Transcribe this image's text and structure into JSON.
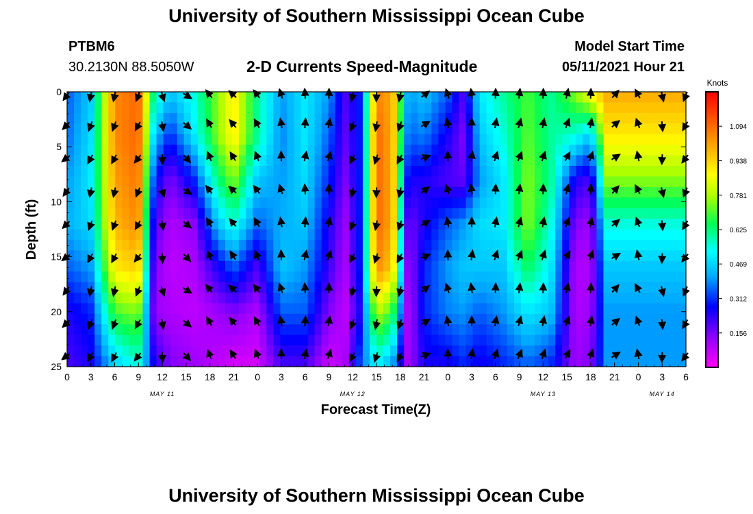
{
  "header": {
    "title": "University of Southern Mississippi Ocean Cube",
    "station_id": "PTBM6",
    "coordinates": "30.2130N  88.5050W",
    "subtitle": "2-D Currents Speed-Magnitude",
    "model_start_label": "Model Start Time",
    "model_start_value": "05/11/2021 Hour 21"
  },
  "footer": {
    "title": "University of Southern Mississippi Ocean Cube"
  },
  "chart_data": {
    "type": "heatmap",
    "title": "2-D Currents Speed-Magnitude",
    "xlabel": "Forecast Time(Z)",
    "ylabel": "Depth (ft)",
    "xlim_hours": [
      0,
      78
    ],
    "ylim": [
      0,
      25
    ],
    "x_tick_labels": [
      "0",
      "3",
      "6",
      "9",
      "12",
      "15",
      "18",
      "21",
      "0",
      "3",
      "6",
      "9",
      "12",
      "15",
      "18",
      "21",
      "0",
      "3",
      "6",
      "9",
      "12",
      "15",
      "18",
      "21",
      "0",
      "3",
      "6"
    ],
    "y_ticks": [
      0,
      5,
      10,
      15,
      20,
      25
    ],
    "date_labels": [
      {
        "text": "MAY 11",
        "hour": 12
      },
      {
        "text": "MAY 12",
        "hour": 36
      },
      {
        "text": "MAY 13",
        "hour": 60
      },
      {
        "text": "MAY 14",
        "hour": 75
      }
    ],
    "colorbar": {
      "title": "Knots",
      "min": 0.0,
      "max": 1.25,
      "ticks": [
        1.094,
        0.938,
        0.781,
        0.625,
        0.469,
        0.312,
        0.156
      ]
    },
    "speed_columns": [
      {
        "hour": 0,
        "speeds": [
          0.35,
          0.36,
          0.4,
          0.42,
          0.35,
          0.25,
          0.2
        ]
      },
      {
        "hour": 3,
        "speeds": [
          0.45,
          0.48,
          0.5,
          0.48,
          0.4,
          0.3,
          0.25
        ]
      },
      {
        "hour": 6,
        "speeds": [
          1.05,
          1.05,
          1.02,
          0.98,
          0.9,
          0.7,
          0.45
        ]
      },
      {
        "hour": 9,
        "speeds": [
          1.1,
          1.1,
          1.08,
          1.05,
          0.95,
          0.75,
          0.55
        ]
      },
      {
        "hour": 11,
        "speeds": [
          0.6,
          0.45,
          0.3,
          0.2,
          0.15,
          0.12,
          0.25
        ]
      },
      {
        "hour": 13,
        "speeds": [
          0.45,
          0.3,
          0.15,
          0.1,
          0.08,
          0.1,
          0.15
        ]
      },
      {
        "hour": 16,
        "speeds": [
          0.55,
          0.5,
          0.3,
          0.14,
          0.1,
          0.08,
          0.12
        ]
      },
      {
        "hour": 19,
        "speeds": [
          0.75,
          0.75,
          0.62,
          0.45,
          0.25,
          0.12,
          0.08
        ]
      },
      {
        "hour": 21,
        "speeds": [
          0.9,
          0.9,
          0.75,
          0.55,
          0.35,
          0.15,
          0.05
        ]
      },
      {
        "hour": 24,
        "speeds": [
          0.6,
          0.6,
          0.45,
          0.35,
          0.2,
          0.1,
          0.05
        ]
      },
      {
        "hour": 27,
        "speeds": [
          0.4,
          0.38,
          0.4,
          0.42,
          0.45,
          0.35,
          0.2
        ]
      },
      {
        "hour": 30,
        "speeds": [
          0.5,
          0.5,
          0.48,
          0.45,
          0.4,
          0.35,
          0.2
        ]
      },
      {
        "hour": 33,
        "speeds": [
          0.4,
          0.35,
          0.3,
          0.25,
          0.22,
          0.15,
          0.06
        ]
      },
      {
        "hour": 35,
        "speeds": [
          0.2,
          0.18,
          0.15,
          0.12,
          0.1,
          0.08,
          0.1
        ]
      },
      {
        "hour": 37,
        "speeds": [
          0.3,
          0.3,
          0.3,
          0.3,
          0.3,
          0.25,
          0.35
        ]
      },
      {
        "hour": 39,
        "speeds": [
          1.05,
          1.1,
          1.1,
          1.1,
          1.05,
          0.8,
          0.5
        ]
      },
      {
        "hour": 41,
        "speeds": [
          1.0,
          1.0,
          1.0,
          1.0,
          0.95,
          0.7,
          0.4
        ]
      },
      {
        "hour": 43,
        "speeds": [
          0.4,
          0.35,
          0.25,
          0.15,
          0.1,
          0.08,
          0.1
        ]
      },
      {
        "hour": 45,
        "speeds": [
          0.45,
          0.38,
          0.25,
          0.25,
          0.3,
          0.3,
          0.25
        ]
      },
      {
        "hour": 48,
        "speeds": [
          0.35,
          0.25,
          0.2,
          0.35,
          0.4,
          0.38,
          0.25
        ]
      },
      {
        "hour": 50,
        "speeds": [
          0.2,
          0.15,
          0.18,
          0.4,
          0.45,
          0.4,
          0.3
        ]
      },
      {
        "hour": 52,
        "speeds": [
          0.5,
          0.45,
          0.4,
          0.48,
          0.45,
          0.35,
          0.25
        ]
      },
      {
        "hour": 55,
        "speeds": [
          0.6,
          0.55,
          0.5,
          0.5,
          0.45,
          0.4,
          0.3
        ]
      },
      {
        "hour": 58,
        "speeds": [
          0.7,
          0.72,
          0.75,
          0.75,
          0.65,
          0.5,
          0.35
        ]
      },
      {
        "hour": 61,
        "speeds": [
          0.6,
          0.6,
          0.6,
          0.55,
          0.5,
          0.45,
          0.3
        ]
      },
      {
        "hour": 64,
        "speeds": [
          0.75,
          0.55,
          0.25,
          0.15,
          0.1,
          0.1,
          0.12
        ]
      },
      {
        "hour": 66,
        "speeds": [
          0.9,
          0.45,
          0.2,
          0.12,
          0.1,
          0.12,
          0.15
        ]
      },
      {
        "hour": 68,
        "speeds": [
          1.0,
          0.9,
          0.75,
          0.55,
          0.45,
          0.4,
          0.4
        ]
      }
    ],
    "vector_arrows": {
      "note": "depth-averaged directions (degrees, 0 = up/north, clockwise) per 3-hour column",
      "hours": [
        0,
        3,
        6,
        9,
        12,
        15,
        18,
        21,
        24,
        27,
        30,
        33,
        36,
        39,
        42,
        45,
        48,
        51,
        54,
        57,
        60,
        63,
        66,
        69,
        72,
        75,
        78
      ],
      "dirs": [
        225,
        200,
        200,
        210,
        170,
        130,
        330,
        320,
        330,
        350,
        5,
        10,
        200,
        190,
        200,
        60,
        350,
        0,
        10,
        15,
        10,
        20,
        10,
        50,
        340,
        175,
        210
      ]
    }
  }
}
